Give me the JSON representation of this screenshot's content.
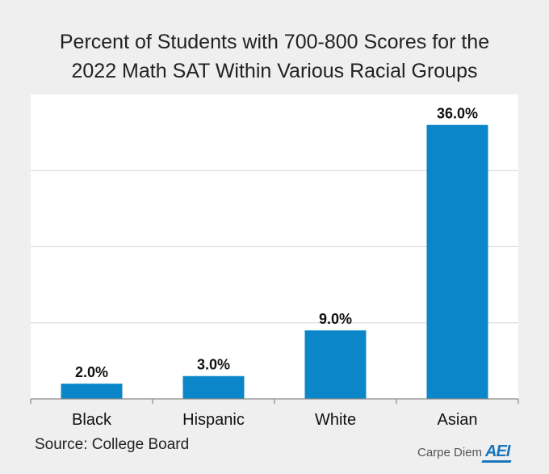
{
  "chart_data": {
    "type": "bar",
    "title_lines": [
      "Percent of Students with 700-800 Scores for the",
      "2022 Math SAT Within Various Racial Groups"
    ],
    "categories": [
      "Black",
      "Hispanic",
      "White",
      "Asian"
    ],
    "values": [
      2.0,
      3.0,
      9.0,
      36.0
    ],
    "value_labels": [
      "2.0%",
      "3.0%",
      "9.0%",
      "36.0%"
    ],
    "ylim": [
      0,
      40
    ],
    "gridlines": [
      10,
      20,
      30
    ],
    "xlabel": "",
    "ylabel": "",
    "grid": true,
    "colors": {
      "bar": "#0a86c9",
      "grid": "#d5d5d5",
      "axis": "#8a8a8a",
      "background": "#efefef",
      "plot_background": "#ffffff"
    }
  },
  "footer": {
    "source": "Source: College Board",
    "brand_text": "Carpe Diem",
    "brand_logo": "AEI"
  }
}
